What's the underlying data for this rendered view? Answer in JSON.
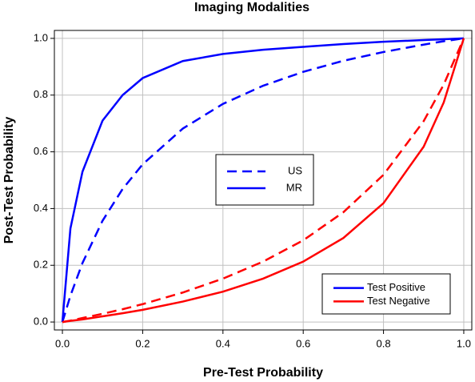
{
  "chart_data": {
    "type": "line",
    "title": "Imaging Modalities",
    "x_label": "Pre-Test Probability",
    "y_label": "Post-Test Probability",
    "x": [
      0,
      0.02,
      0.05,
      0.1,
      0.15,
      0.2,
      0.3,
      0.4,
      0.5,
      0.6,
      0.7,
      0.8,
      0.9,
      0.95,
      1
    ],
    "series": [
      {
        "color": "#0000ff",
        "dash": "dashed",
        "values": [
          0,
          0.093,
          0.208,
          0.357,
          0.469,
          0.556,
          0.682,
          0.769,
          0.833,
          0.882,
          0.921,
          0.952,
          0.978,
          0.99,
          1
        ]
      },
      {
        "color": "#0000ff",
        "dash": "solid",
        "values": [
          0,
          0.33,
          0.53,
          0.71,
          0.8,
          0.86,
          0.92,
          0.945,
          0.96,
          0.97,
          0.98,
          0.988,
          0.994,
          0.997,
          1
        ]
      },
      {
        "color": "#ff0000",
        "dash": "dashed",
        "values": [
          0,
          0.005,
          0.014,
          0.029,
          0.045,
          0.063,
          0.104,
          0.153,
          0.213,
          0.288,
          0.387,
          0.519,
          0.708,
          0.837,
          1
        ]
      },
      {
        "color": "#ff0000",
        "dash": "solid",
        "values": [
          0,
          0.004,
          0.009,
          0.02,
          0.031,
          0.043,
          0.072,
          0.107,
          0.153,
          0.213,
          0.296,
          0.419,
          0.618,
          0.774,
          1
        ]
      }
    ],
    "legends": [
      {
        "entries": [
          {
            "label": "US",
            "color": "#0000ff",
            "dash": "dashed"
          },
          {
            "label": "MR",
            "color": "#0000ff",
            "dash": "solid"
          }
        ]
      },
      {
        "entries": [
          {
            "label": "Test Positive",
            "color": "#0000ff",
            "dash": "solid"
          },
          {
            "label": "Test Negative",
            "color": "#ff0000",
            "dash": "solid"
          }
        ]
      }
    ],
    "xlim": [
      -0.02,
      1.02
    ],
    "ylim": [
      -0.028,
      1.028
    ],
    "xticks": [
      {
        "value": 0,
        "label": "0.0"
      },
      {
        "value": 0.2,
        "label": "0.2"
      },
      {
        "value": 0.4,
        "label": "0.4"
      },
      {
        "value": 0.6,
        "label": "0.6"
      },
      {
        "value": 0.8,
        "label": "0.8"
      },
      {
        "value": 1,
        "label": "1.0"
      }
    ],
    "yticks": [
      {
        "value": 0,
        "label": "0.0"
      },
      {
        "value": 0.2,
        "label": "0.2"
      },
      {
        "value": 0.4,
        "label": "0.4"
      },
      {
        "value": 0.6,
        "label": "0.6"
      },
      {
        "value": 0.8,
        "label": "0.8"
      },
      {
        "value": 1,
        "label": "1.0"
      }
    ],
    "grid": true
  }
}
